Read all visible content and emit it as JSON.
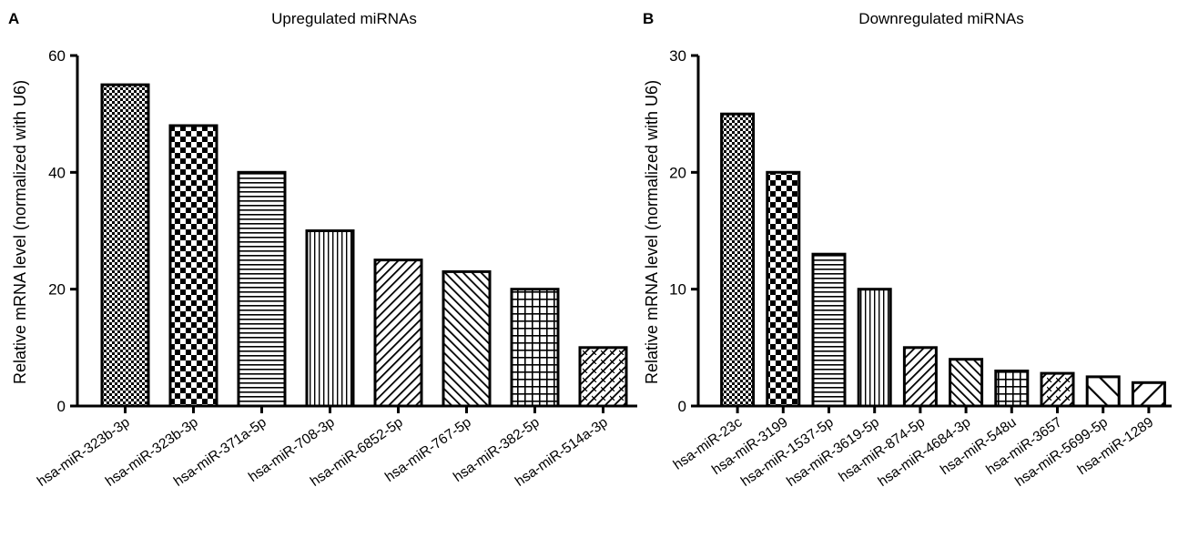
{
  "figure": {
    "panels": [
      {
        "letter": "A",
        "title": "Upregulated miRNAs"
      },
      {
        "letter": "B",
        "title": "Downregulated miRNAs"
      }
    ]
  },
  "chart_data": [
    {
      "type": "bar",
      "panel": "A",
      "title": "Upregulated miRNAs",
      "xlabel": "",
      "ylabel": "Relative mRNA level (normalized with U6)",
      "ylim": [
        0,
        60
      ],
      "yticks": [
        0,
        20,
        40,
        60
      ],
      "grid": false,
      "categories": [
        "hsa-miR-323b-3p",
        "hsa-miR-323b-3p",
        "hsa-miR-371a-5p",
        "hsa-miR-708-3p",
        "hsa-miR-6852-5p",
        "hsa-miR-767-5p",
        "hsa-miR-382-5p",
        "hsa-miR-514a-3p"
      ],
      "values": [
        55,
        48,
        40,
        30,
        25,
        23,
        20,
        10
      ],
      "fill_patterns": [
        "fine-check",
        "checkerboard",
        "horizontal-lines",
        "vertical-lines",
        "diagonal-up",
        "diagonal-down",
        "grid",
        "zigzag"
      ]
    },
    {
      "type": "bar",
      "panel": "B",
      "title": "Downregulated miRNAs",
      "xlabel": "",
      "ylabel": "Relative mRNA level (normalized with U6)",
      "ylim": [
        0,
        30
      ],
      "yticks": [
        0,
        10,
        20,
        30
      ],
      "grid": false,
      "categories": [
        "hsa-miR-23c",
        "hsa-miR-3199",
        "hsa-miR-1537-5p",
        "hsa-miR-3619-5p",
        "hsa-miR-874-5p",
        "hsa-miR-4684-3p",
        "hsa-miR-548u",
        "hsa-miR-3657",
        "hsa-miR-5699-5p",
        "hsa-miR-1289"
      ],
      "values": [
        25,
        20,
        13,
        10,
        5,
        4,
        3,
        2.8,
        2.5,
        2
      ],
      "fill_patterns": [
        "fine-check",
        "checkerboard",
        "horizontal-lines",
        "vertical-lines",
        "diagonal-up",
        "diagonal-down",
        "grid",
        "zigzag",
        "wide-diagonal-down",
        "wide-diagonal-up"
      ]
    }
  ]
}
